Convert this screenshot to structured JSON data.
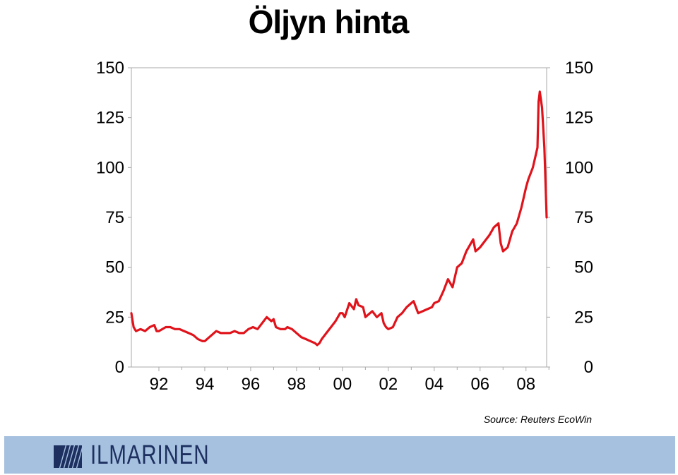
{
  "title": "Öljyn hinta",
  "source": "Source: Reuters EcoWin",
  "logo_text": "ILMARINEN",
  "colors": {
    "line": "#e0131b",
    "footer": "#a6c0df",
    "logo": "#1d3060"
  },
  "chart_data": {
    "type": "line",
    "title": "Öljyn hinta",
    "xlabel": "",
    "ylabel": "",
    "x_range": [
      1990.8,
      2008.9
    ],
    "ylim": [
      0,
      150
    ],
    "y_ticks": [
      0,
      25,
      50,
      75,
      100,
      125,
      150
    ],
    "y_tick_labels": [
      "0",
      "25",
      "50",
      "75",
      "100",
      "125",
      "150"
    ],
    "y_axis_sides": [
      "left",
      "right"
    ],
    "x_ticks": [
      1992,
      1994,
      1996,
      1998,
      2000,
      2002,
      2004,
      2006,
      2008
    ],
    "x_tick_labels": [
      "92",
      "94",
      "96",
      "98",
      "00",
      "02",
      "04",
      "06",
      "08"
    ],
    "grid": false,
    "series": [
      {
        "name": "",
        "color": "#e0131b",
        "x": [
          1990.8,
          1990.9,
          1991.0,
          1991.2,
          1991.4,
          1991.6,
          1991.8,
          1991.9,
          1992.0,
          1992.3,
          1992.5,
          1992.7,
          1992.9,
          1993.1,
          1993.3,
          1993.5,
          1993.7,
          1993.9,
          1994.0,
          1994.1,
          1994.3,
          1994.5,
          1994.7,
          1994.9,
          1995.1,
          1995.3,
          1995.5,
          1995.7,
          1995.9,
          1996.1,
          1996.3,
          1996.5,
          1996.7,
          1996.9,
          1997.0,
          1997.1,
          1997.3,
          1997.5,
          1997.6,
          1997.8,
          1998.0,
          1998.2,
          1998.4,
          1998.6,
          1998.8,
          1998.9,
          1999.0,
          1999.1,
          1999.3,
          1999.5,
          1999.7,
          1999.9,
          2000.0,
          2000.1,
          2000.3,
          2000.5,
          2000.6,
          2000.7,
          2000.9,
          2001.0,
          2001.1,
          2001.3,
          2001.5,
          2001.7,
          2001.8,
          2001.9,
          2002.0,
          2002.2,
          2002.4,
          2002.6,
          2002.8,
          2003.0,
          2003.1,
          2003.3,
          2003.5,
          2003.7,
          2003.9,
          2004.0,
          2004.2,
          2004.4,
          2004.6,
          2004.8,
          2005.0,
          2005.2,
          2005.4,
          2005.6,
          2005.7,
          2005.8,
          2006.0,
          2006.2,
          2006.4,
          2006.6,
          2006.8,
          2006.9,
          2007.0,
          2007.2,
          2007.4,
          2007.6,
          2007.8,
          2008.0,
          2008.1,
          2008.3,
          2008.5,
          2008.55,
          2008.6,
          2008.7,
          2008.8,
          2008.9
        ],
        "values": [
          27,
          20,
          18,
          19,
          18,
          20,
          21,
          18,
          18,
          20,
          20,
          19,
          19,
          18,
          17,
          16,
          14,
          13,
          13,
          14,
          16,
          18,
          17,
          17,
          17,
          18,
          17,
          17,
          19,
          20,
          19,
          22,
          25,
          23,
          24,
          20,
          19,
          19,
          20,
          19,
          17,
          15,
          14,
          13,
          12,
          11,
          12,
          14,
          17,
          20,
          23,
          27,
          27,
          25,
          32,
          29,
          34,
          31,
          30,
          25,
          26,
          28,
          25,
          27,
          22,
          20,
          19,
          20,
          25,
          27,
          30,
          32,
          33,
          27,
          28,
          29,
          30,
          32,
          33,
          38,
          44,
          40,
          50,
          52,
          58,
          62,
          64,
          58,
          60,
          63,
          66,
          70,
          72,
          62,
          58,
          60,
          68,
          72,
          80,
          90,
          94,
          100,
          110,
          133,
          138,
          130,
          110,
          75
        ]
      }
    ]
  }
}
